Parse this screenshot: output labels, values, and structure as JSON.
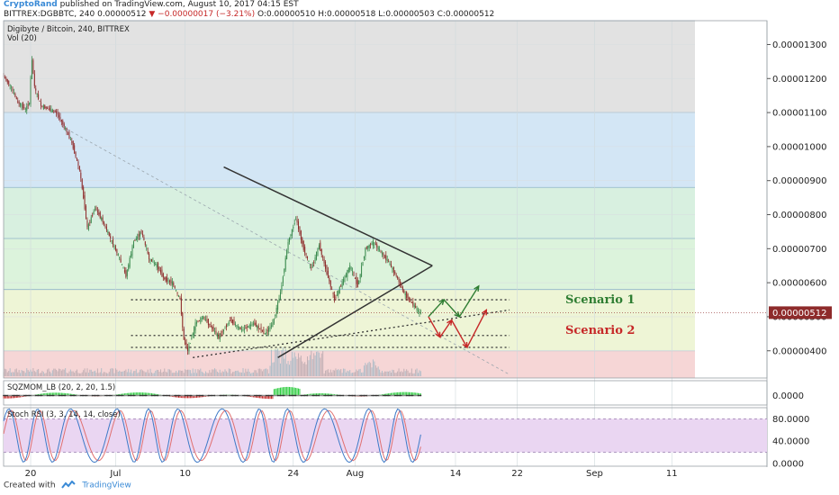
{
  "header": {
    "author": "CryptoRand",
    "published_text": "published on TradingView.com, August 10, 2017 04:15 EST",
    "symbol": "BITTREX:DGBBTC, 240",
    "last_price": "0.00000512",
    "change": "−0.00000017 (−3.21%)",
    "ohlc": "O:0.00000510 H:0.00000518 L:0.00000503 C:0.00000512"
  },
  "footer": {
    "created_with": "Created with",
    "brand": "TradingView"
  },
  "colors": {
    "up": "#3a8a4e",
    "down": "#8e2b2b",
    "scenario1": "#2e7d32",
    "scenario2": "#c62828",
    "mom_pos": "#2ecc40",
    "mom_neg": "#c62828",
    "stoch_k": "#3d7ac7",
    "stoch_d": "#e07070"
  },
  "chart_data": [
    {
      "type": "line",
      "title": "Digibyte / Bitcoin, 240, BITTREX",
      "volume_label": "Vol (20)",
      "ylim": [
        3.2e-06,
        1.37e-05
      ],
      "y_ticks": [
        "0.00001300",
        "0.00001200",
        "0.00001100",
        "0.00001000",
        "0.00000900",
        "0.00000800",
        "0.00000700",
        "0.00000600",
        "0.00000500",
        "0.00000400"
      ],
      "x_ticks": [
        {
          "label": "20",
          "day": 0
        },
        {
          "label": "Jul",
          "day": 11
        },
        {
          "label": "10",
          "day": 20
        },
        {
          "label": "24",
          "day": 34
        },
        {
          "label": "Aug",
          "day": 42
        },
        {
          "label": "14",
          "day": 55
        },
        {
          "label": "22",
          "day": 63
        },
        {
          "label": "Sep",
          "day": 73
        },
        {
          "label": "11",
          "day": 83
        }
      ],
      "x_range_days": [
        -3.5,
        86
      ],
      "last_price": 5.12e-06,
      "price_path": [
        [
          -3.5,
          1.21e-05
        ],
        [
          -2.5,
          1.18e-05
        ],
        [
          -1.5,
          1.13e-05
        ],
        [
          -0.5,
          1.11e-05
        ],
        [
          0,
          1.13e-05
        ],
        [
          0.3,
          1.26e-05
        ],
        [
          0.7,
          1.17e-05
        ],
        [
          1.5,
          1.12e-05
        ],
        [
          2.5,
          1.11e-05
        ],
        [
          3.5,
          1.1e-05
        ],
        [
          4.5,
          1.06e-05
        ],
        [
          5.5,
          1.01e-05
        ],
        [
          6.5,
          9.3e-06
        ],
        [
          7,
          8.5e-06
        ],
        [
          7.5,
          7.6e-06
        ],
        [
          8.5,
          8.2e-06
        ],
        [
          9.5,
          7.8e-06
        ],
        [
          10.5,
          7.3e-06
        ],
        [
          11.5,
          6.8e-06
        ],
        [
          12.5,
          6.2e-06
        ],
        [
          13.5,
          7.2e-06
        ],
        [
          14.5,
          7.5e-06
        ],
        [
          15.5,
          6.7e-06
        ],
        [
          16.5,
          6.5e-06
        ],
        [
          17.5,
          6.1e-06
        ],
        [
          18.5,
          6e-06
        ],
        [
          19.5,
          5.5e-06
        ],
        [
          20,
          4.3e-06
        ],
        [
          20.5,
          4e-06
        ],
        [
          21.5,
          4.8e-06
        ],
        [
          22.5,
          5e-06
        ],
        [
          23.5,
          4.7e-06
        ],
        [
          24.5,
          4.4e-06
        ],
        [
          26,
          4.9e-06
        ],
        [
          27.5,
          4.6e-06
        ],
        [
          29,
          4.8e-06
        ],
        [
          30.5,
          4.5e-06
        ],
        [
          31.5,
          4.8e-06
        ],
        [
          32.5,
          5.7e-06
        ],
        [
          33.5,
          7.2e-06
        ],
        [
          34.5,
          7.9e-06
        ],
        [
          35.5,
          7e-06
        ],
        [
          36.5,
          6.4e-06
        ],
        [
          37.5,
          7.1e-06
        ],
        [
          38.5,
          6.3e-06
        ],
        [
          39.5,
          5.5e-06
        ],
        [
          40.5,
          6e-06
        ],
        [
          41.5,
          6.5e-06
        ],
        [
          42.5,
          5.9e-06
        ],
        [
          43.5,
          7e-06
        ],
        [
          44.5,
          7.2e-06
        ],
        [
          45.5,
          6.9e-06
        ],
        [
          46.5,
          6.6e-06
        ],
        [
          47.5,
          6.2e-06
        ],
        [
          48.5,
          5.7e-06
        ],
        [
          49.5,
          5.4e-06
        ],
        [
          50.5,
          5.12e-06
        ]
      ],
      "zones": [
        {
          "from": 1.1e-05,
          "to": 1.37e-05,
          "color": "#e2e2e2"
        },
        {
          "from": 8.8e-06,
          "to": 1.1e-05,
          "color": "#d3e6f5"
        },
        {
          "from": 7.3e-06,
          "to": 8.8e-06,
          "color": "#d8f0e0"
        },
        {
          "from": 5.8e-06,
          "to": 7.3e-06,
          "color": "#dcf3dc"
        },
        {
          "from": 4e-06,
          "to": 5.8e-06,
          "color": "#eef5d6"
        },
        {
          "from": 3.2e-06,
          "to": 4e-06,
          "color": "#f6d6d6"
        }
      ],
      "triangle": {
        "upper": [
          [
            25,
            9.4e-06
          ],
          [
            52,
            6.5e-06
          ]
        ],
        "lower": [
          [
            32,
            3.8e-06
          ],
          [
            52,
            6.5e-06
          ]
        ]
      },
      "long_trendline": [
        [
          4,
          1.06e-05
        ],
        [
          62,
          3.3e-06
        ]
      ],
      "support_trendline": [
        [
          21,
          3.8e-06
        ],
        [
          62,
          5.2e-06
        ]
      ],
      "dotted_levels": [
        {
          "y": 5.5e-06,
          "from": 13,
          "to": 62
        },
        {
          "y": 4.45e-06,
          "from": 13,
          "to": 62
        },
        {
          "y": 4.1e-06,
          "from": 13,
          "to": 62
        }
      ],
      "scenario1": {
        "label": "Scenario 1",
        "path": [
          [
            51.5,
            5e-06
          ],
          [
            53.5,
            5.5e-06
          ],
          [
            55.5,
            5e-06
          ],
          [
            58,
            5.9e-06
          ]
        ]
      },
      "scenario2": {
        "label": "Scenario 2",
        "path": [
          [
            51.5,
            5e-06
          ],
          [
            53,
            4.4e-06
          ],
          [
            54.5,
            4.9e-06
          ],
          [
            56.5,
            4.1e-06
          ],
          [
            59,
            5.2e-06
          ]
        ]
      }
    },
    {
      "type": "bar",
      "title": "SQZMOM_LB (20, 2, 20, 1.5)",
      "last_value": "0.0000",
      "y_ticks": [
        "0.0000"
      ]
    },
    {
      "type": "line",
      "title": "Stoch RSI (3, 3, 14, 14, close)",
      "ylim": [
        -5,
        100
      ],
      "y_ticks": [
        "80.0000",
        "40.0000",
        "0.0000"
      ],
      "band": [
        20,
        80
      ],
      "series": [
        {
          "name": "K"
        },
        {
          "name": "D"
        }
      ]
    }
  ]
}
